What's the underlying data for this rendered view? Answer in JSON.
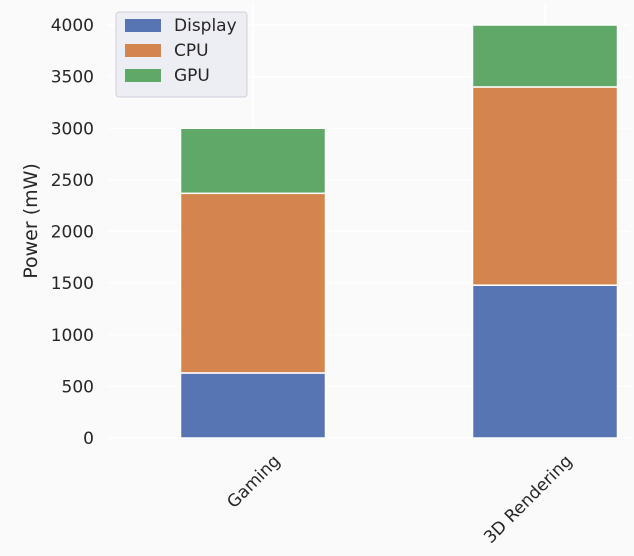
{
  "chart_data": {
    "type": "bar",
    "stacked": true,
    "categories": [
      "Gaming",
      "3D Rendering"
    ],
    "series": [
      {
        "name": "Display",
        "color": "#5875b3",
        "values": [
          630,
          1480
        ]
      },
      {
        "name": "CPU",
        "color": "#d4844d",
        "values": [
          1740,
          1920
        ]
      },
      {
        "name": "GPU",
        "color": "#5fa868",
        "values": [
          630,
          600
        ]
      }
    ],
    "title": "",
    "xlabel": "",
    "ylabel": "Power (mW)",
    "ylim": [
      0,
      4000
    ],
    "yticks": [
      0,
      500,
      1000,
      1500,
      2000,
      2500,
      3000,
      3500,
      4000
    ],
    "grid": true,
    "legend_position": "top-left",
    "xtick_rotation": 45
  }
}
